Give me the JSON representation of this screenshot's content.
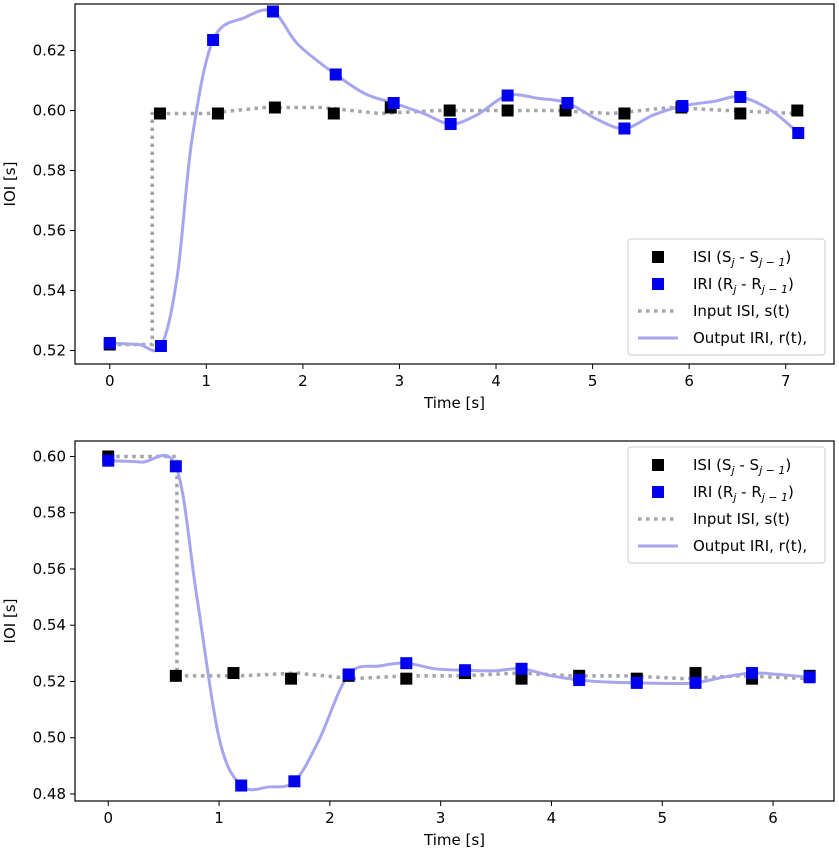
{
  "chart_data": [
    {
      "type": "line",
      "xlabel": "Time [s]",
      "ylabel": "IOI [s]",
      "xlim": [
        -0.36,
        7.5
      ],
      "ylim": [
        0.5155,
        0.6355
      ],
      "xticks": [
        0,
        1,
        2,
        3,
        4,
        5,
        6,
        7
      ],
      "yticks": [
        0.52,
        0.54,
        0.56,
        0.58,
        0.6,
        0.62
      ],
      "ytick_labels": [
        "0.52",
        "0.54",
        "0.56",
        "0.58",
        "0.60",
        "0.62"
      ],
      "legend_position": "lower-right",
      "legend": [
        {
          "marker": "square-black",
          "base": "ISI (S",
          "sub1": "j",
          "mid": " - S",
          "sub2": "j − 1",
          "tail": ")"
        },
        {
          "marker": "square-blue",
          "base": "IRI (R",
          "sub1": "j",
          "mid": " - R",
          "sub2": "j − 1",
          "tail": ")"
        },
        {
          "marker": "dotted-gray",
          "base": "Input ISI, s(t)"
        },
        {
          "marker": "line-blue",
          "base": "Output IRI, r(t),"
        }
      ],
      "series": [
        {
          "kind": "isi_markers",
          "color": "#000000",
          "x": [
            0.0,
            0.52,
            1.12,
            1.71,
            2.32,
            2.91,
            3.52,
            4.12,
            4.72,
            5.33,
            5.92,
            6.53,
            7.12
          ],
          "y": [
            0.522,
            0.599,
            0.599,
            0.601,
            0.599,
            0.601,
            0.6,
            0.6,
            0.6,
            0.599,
            0.601,
            0.599,
            0.6
          ]
        },
        {
          "kind": "iri_markers",
          "color": "#0000ee",
          "x": [
            0.0,
            0.53,
            1.07,
            1.69,
            2.34,
            2.94,
            3.53,
            4.12,
            4.74,
            5.33,
            5.93,
            6.53,
            7.13
          ],
          "y": [
            0.5225,
            0.5215,
            0.6235,
            0.633,
            0.612,
            0.6025,
            0.5955,
            0.605,
            0.6025,
            0.594,
            0.6015,
            0.6045,
            0.5925
          ]
        },
        {
          "kind": "input_step",
          "color": "#a6a6a6",
          "x": [
            0.0,
            0.44,
            0.44,
            1.0,
            1.6,
            2.2,
            2.8,
            3.4,
            4.0,
            4.6,
            5.2,
            5.8,
            6.4,
            7.12
          ],
          "y": [
            0.522,
            0.522,
            0.599,
            0.599,
            0.601,
            0.601,
            0.599,
            0.6,
            0.6,
            0.6,
            0.599,
            0.601,
            0.6,
            0.599
          ]
        },
        {
          "kind": "output_curve",
          "color": "#a6a6ef",
          "x": [
            0.0,
            0.3,
            0.53,
            0.7,
            0.85,
            1.07,
            1.4,
            1.69,
            1.95,
            2.34,
            2.65,
            2.94,
            3.25,
            3.53,
            3.8,
            4.12,
            4.45,
            4.74,
            5.05,
            5.33,
            5.63,
            5.93,
            6.25,
            6.53,
            6.85,
            7.13
          ],
          "y": [
            0.5225,
            0.522,
            0.5215,
            0.545,
            0.59,
            0.6235,
            0.631,
            0.633,
            0.622,
            0.612,
            0.6055,
            0.6025,
            0.599,
            0.5955,
            0.5985,
            0.605,
            0.604,
            0.6025,
            0.597,
            0.594,
            0.5985,
            0.6015,
            0.603,
            0.6045,
            0.6,
            0.5925
          ]
        }
      ]
    },
    {
      "type": "line",
      "xlabel": "Time [s]",
      "ylabel": "IOI [s]",
      "xlim": [
        -0.3,
        6.55
      ],
      "ylim": [
        0.4775,
        0.6055
      ],
      "xticks": [
        0,
        1,
        2,
        3,
        4,
        5,
        6
      ],
      "yticks": [
        0.48,
        0.5,
        0.52,
        0.54,
        0.56,
        0.58,
        0.6
      ],
      "ytick_labels": [
        "0.48",
        "0.50",
        "0.52",
        "0.54",
        "0.56",
        "0.58",
        "0.60"
      ],
      "legend_position": "upper-right",
      "legend": [
        {
          "marker": "square-black",
          "base": "ISI (S",
          "sub1": "j",
          "mid": " - S",
          "sub2": "j − 1",
          "tail": ")"
        },
        {
          "marker": "square-blue",
          "base": "IRI (R",
          "sub1": "j",
          "mid": " - R",
          "sub2": "j − 1",
          "tail": ")"
        },
        {
          "marker": "dotted-gray",
          "base": "Input ISI, s(t)"
        },
        {
          "marker": "line-blue",
          "base": "Output IRI, r(t),"
        }
      ],
      "series": [
        {
          "kind": "isi_markers",
          "color": "#000000",
          "x": [
            0.0,
            0.61,
            1.13,
            1.65,
            2.17,
            2.69,
            3.22,
            3.73,
            4.25,
            4.77,
            5.3,
            5.81,
            6.33
          ],
          "y": [
            0.6,
            0.522,
            0.523,
            0.521,
            0.522,
            0.521,
            0.523,
            0.521,
            0.522,
            0.521,
            0.523,
            0.521,
            0.522
          ]
        },
        {
          "kind": "iri_markers",
          "color": "#0000ee",
          "x": [
            0.0,
            0.61,
            1.2,
            1.68,
            2.17,
            2.69,
            3.22,
            3.73,
            4.25,
            4.77,
            5.3,
            5.81,
            6.33
          ],
          "y": [
            0.5985,
            0.5965,
            0.483,
            0.4845,
            0.5225,
            0.5265,
            0.524,
            0.5245,
            0.5205,
            0.5195,
            0.5195,
            0.523,
            0.5215
          ]
        },
        {
          "kind": "input_step",
          "color": "#a6a6a6",
          "x": [
            0.0,
            0.62,
            0.62,
            1.2,
            1.7,
            2.2,
            2.7,
            3.2,
            3.7,
            4.2,
            4.7,
            5.2,
            5.7,
            6.33
          ],
          "y": [
            0.6,
            0.6,
            0.522,
            0.522,
            0.523,
            0.521,
            0.522,
            0.522,
            0.523,
            0.522,
            0.522,
            0.521,
            0.522,
            0.521
          ]
        },
        {
          "kind": "output_curve",
          "color": "#a6a6ef",
          "x": [
            0.0,
            0.3,
            0.61,
            0.8,
            1.0,
            1.2,
            1.45,
            1.68,
            1.9,
            2.17,
            2.45,
            2.69,
            2.95,
            3.22,
            3.48,
            3.73,
            4.0,
            4.25,
            4.5,
            4.77,
            5.05,
            5.3,
            5.55,
            5.81,
            6.05,
            6.33
          ],
          "y": [
            0.5985,
            0.598,
            0.5965,
            0.55,
            0.5,
            0.483,
            0.4825,
            0.4845,
            0.499,
            0.5225,
            0.5255,
            0.5265,
            0.5245,
            0.524,
            0.5238,
            0.5245,
            0.522,
            0.5205,
            0.5198,
            0.5195,
            0.5193,
            0.5195,
            0.5215,
            0.523,
            0.5225,
            0.5215
          ]
        }
      ]
    }
  ]
}
